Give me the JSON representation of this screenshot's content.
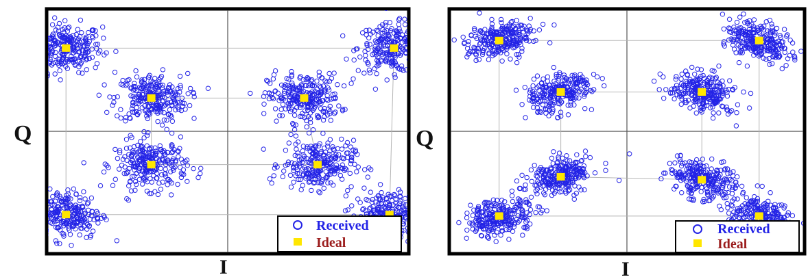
{
  "chart_data": [
    {
      "type": "scatter",
      "xlabel": "I",
      "ylabel": "Q",
      "xlim": [
        -4,
        4
      ],
      "ylim": [
        -4,
        4
      ],
      "legend": {
        "placement": "bottom-right",
        "entries": [
          {
            "label": "Received",
            "color": "#2323e6",
            "marker": "circle"
          },
          {
            "label": "Ideal",
            "color": "#ffe600",
            "marker": "square"
          }
        ]
      },
      "ideal_points": [
        {
          "x": -3.6,
          "y": 2.75
        },
        {
          "x": 3.7,
          "y": 2.75
        },
        {
          "x": -1.7,
          "y": 1.1
        },
        {
          "x": 1.7,
          "y": 1.1
        },
        {
          "x": -1.7,
          "y": -1.1
        },
        {
          "x": 2.0,
          "y": -1.1
        },
        {
          "x": -3.6,
          "y": -2.75
        },
        {
          "x": 3.6,
          "y": -2.75
        }
      ],
      "noise_spread": 0.4
    },
    {
      "type": "scatter",
      "xlabel": "I",
      "ylabel": "Q",
      "xlim": [
        -4,
        4
      ],
      "ylim": [
        -4,
        4
      ],
      "legend": {
        "placement": "bottom-right",
        "entries": [
          {
            "label": "Received",
            "color": "#2323e6",
            "marker": "circle"
          },
          {
            "label": "Ideal",
            "color": "#ffe600",
            "marker": "square"
          }
        ]
      },
      "ideal_points": [
        {
          "x": -2.9,
          "y": 3.0
        },
        {
          "x": 3.0,
          "y": 3.0
        },
        {
          "x": -1.5,
          "y": 1.3
        },
        {
          "x": 1.7,
          "y": 1.3
        },
        {
          "x": -1.5,
          "y": -1.5
        },
        {
          "x": 1.7,
          "y": -1.6
        },
        {
          "x": -2.9,
          "y": -2.8
        },
        {
          "x": 3.0,
          "y": -2.8
        }
      ],
      "noise_spread": 0.4
    }
  ]
}
